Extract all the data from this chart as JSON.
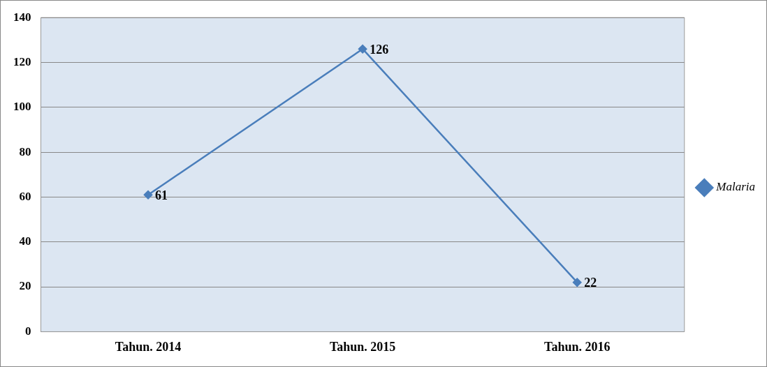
{
  "chart_data": {
    "type": "line",
    "categories": [
      "Tahun. 2014",
      "Tahun. 2015",
      "Tahun. 2016"
    ],
    "series": [
      {
        "name": "Malaria",
        "color": "#4a7ebb",
        "values": [
          61,
          126,
          22
        ]
      }
    ],
    "ylim": [
      0,
      140
    ],
    "yticks": [
      0,
      20,
      40,
      60,
      80,
      100,
      120,
      140
    ],
    "grid": "y",
    "legend": "right",
    "marker": "diamond",
    "line_style": "solid",
    "data_labels": true
  }
}
